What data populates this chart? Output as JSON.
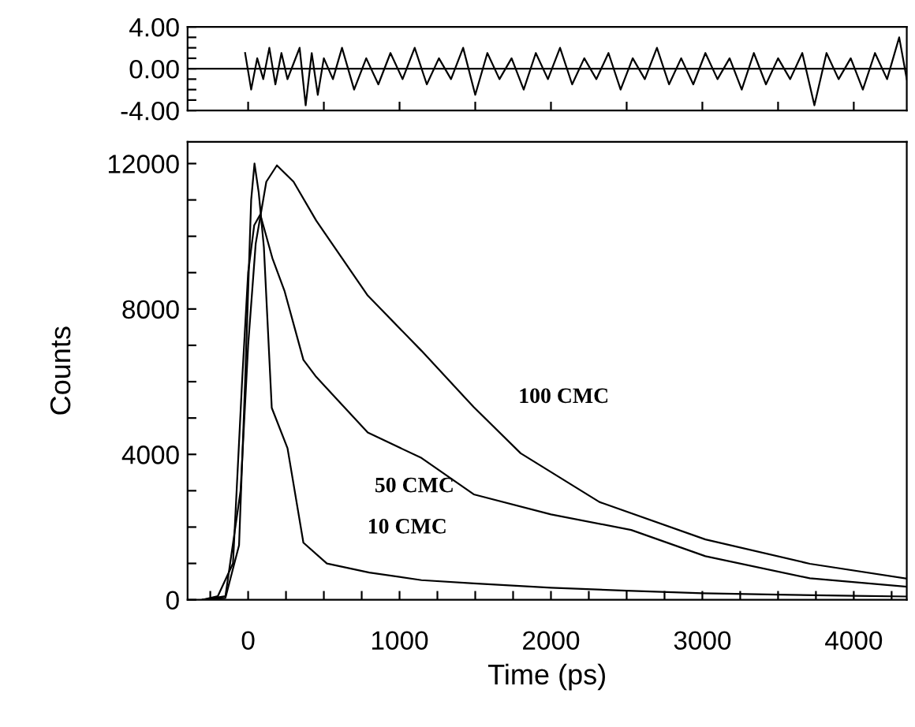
{
  "chart_data": [
    {
      "type": "line",
      "x": [
        -20,
        20,
        60,
        100,
        140,
        180,
        220,
        260,
        300,
        340,
        380,
        420,
        460,
        500,
        560,
        620,
        700,
        780,
        860,
        940,
        1020,
        1100,
        1180,
        1260,
        1340,
        1420,
        1500,
        1580,
        1660,
        1740,
        1820,
        1900,
        1980,
        2060,
        2140,
        2220,
        2300,
        2380,
        2460,
        2540,
        2620,
        2700,
        2780,
        2860,
        2940,
        3020,
        3100,
        3180,
        3260,
        3340,
        3420,
        3500,
        3580,
        3660,
        3740,
        3820,
        3900,
        3980,
        4060,
        4140,
        4220,
        4300,
        4350
      ],
      "series": [
        {
          "color": "#000000",
          "values": [
            1.5,
            -2,
            1,
            -1,
            2,
            -1.5,
            1.5,
            -1,
            0.5,
            2,
            -3.5,
            1.5,
            -2.5,
            1,
            -1,
            2,
            -2,
            1,
            -1.5,
            1.5,
            -1,
            2,
            -1.5,
            1,
            -1,
            2,
            -2.5,
            1.5,
            -1,
            1,
            -2,
            1.5,
            -1,
            2,
            -1.5,
            1,
            -1,
            1.5,
            -2,
            1,
            -1,
            2,
            -1.5,
            1,
            -1.5,
            1.5,
            -1,
            1,
            -2,
            1.5,
            -1.5,
            1,
            -1,
            1.5,
            -3.5,
            1.5,
            -1,
            1,
            -2,
            1.5,
            -1,
            3,
            -1
          ]
        }
      ],
      "xlim": [
        -400,
        4350
      ],
      "ylim": [
        -4,
        4
      ],
      "xticks": [
        {
          "value": 0,
          "label": null
        },
        {
          "value": 500,
          "label": null
        },
        {
          "value": 1000,
          "label": null
        },
        {
          "value": 1500,
          "label": null
        },
        {
          "value": 2000,
          "label": null
        },
        {
          "value": 2500,
          "label": null
        },
        {
          "value": 3000,
          "label": null
        },
        {
          "value": 3500,
          "label": null
        },
        {
          "value": 4000,
          "label": null
        }
      ],
      "yticks": [
        {
          "value": -4,
          "label": "-4.00"
        },
        {
          "value": -3,
          "label": null
        },
        {
          "value": -2,
          "label": null
        },
        {
          "value": -1,
          "label": null
        },
        {
          "value": 0,
          "label": "0.00"
        },
        {
          "value": 1,
          "label": null
        },
        {
          "value": 2,
          "label": null
        },
        {
          "value": 3,
          "label": null
        },
        {
          "value": 4,
          "label": "4.00"
        }
      ],
      "ref_lines": [
        {
          "axis": "y",
          "value": 0,
          "color": "#000000"
        }
      ],
      "tick_labels": "y",
      "grid": false,
      "legend": false
    },
    {
      "type": "line",
      "xlabel": "Time (ps)",
      "ylabel": "Counts",
      "series": [
        {
          "color": "#000000",
          "x": [
            -300,
            -150,
            -60,
            -20,
            20,
            42,
            70,
            104,
            156,
            260,
            365,
            520,
            800,
            1145,
            1490,
            2000,
            2500,
            3000,
            3500,
            4000,
            4350
          ],
          "values": [
            0,
            50,
            1500,
            6000,
            11000,
            12000,
            11200,
            9700,
            5280,
            4170,
            1570,
            1000,
            750,
            540,
            450,
            330,
            250,
            180,
            140,
            110,
            90
          ]
        },
        {
          "color": "#000000",
          "x": [
            -300,
            -200,
            -100,
            -40,
            0,
            40,
            80,
            160,
            240,
            365,
            450,
            790,
            1145,
            1490,
            2000,
            2530,
            3020,
            3710,
            4350
          ],
          "values": [
            0,
            100,
            1000,
            6000,
            9000,
            10300,
            10600,
            9400,
            8500,
            6600,
            6130,
            4600,
            3900,
            2900,
            2350,
            1920,
            1200,
            590,
            360
          ]
        },
        {
          "color": "#000000",
          "x": [
            -300,
            -150,
            -50,
            0,
            50,
            120,
            190,
            300,
            450,
            790,
            1145,
            1490,
            1800,
            2320,
            3020,
            3710,
            4350
          ],
          "values": [
            0,
            100,
            3000,
            7000,
            9800,
            11500,
            11950,
            11500,
            10430,
            8370,
            6850,
            5300,
            4030,
            2690,
            1660,
            990,
            580
          ]
        }
      ],
      "annotations": [
        "100 CMC",
        "50 CMC",
        "10 CMC"
      ],
      "xlim": [
        -400,
        4350
      ],
      "ylim": [
        0,
        12600
      ],
      "xticks": [
        {
          "value": -250,
          "label": null
        },
        0,
        {
          "value": 250,
          "label": null
        },
        {
          "value": 500,
          "label": null
        },
        {
          "value": 750,
          "label": null
        },
        1000,
        {
          "value": 1250,
          "label": null
        },
        {
          "value": 1500,
          "label": null
        },
        {
          "value": 1750,
          "label": null
        },
        2000,
        {
          "value": 2250,
          "label": null
        },
        {
          "value": 2500,
          "label": null
        },
        {
          "value": 2750,
          "label": null
        },
        3000,
        {
          "value": 3250,
          "label": null
        },
        {
          "value": 3500,
          "label": null
        },
        {
          "value": 3750,
          "label": null
        },
        4000,
        {
          "value": 4250,
          "label": null
        }
      ],
      "yticks": [
        0,
        {
          "value": 1000,
          "label": null
        },
        {
          "value": 2000,
          "label": null
        },
        {
          "value": 3000,
          "label": null
        },
        4000,
        {
          "value": 5000,
          "label": null
        },
        {
          "value": 6000,
          "label": null
        },
        {
          "value": 7000,
          "label": null
        },
        8000,
        {
          "value": 9000,
          "label": null
        },
        {
          "value": 10000,
          "label": null
        },
        {
          "value": 11000,
          "label": null
        },
        12000
      ],
      "grid": false,
      "legend": false
    }
  ]
}
